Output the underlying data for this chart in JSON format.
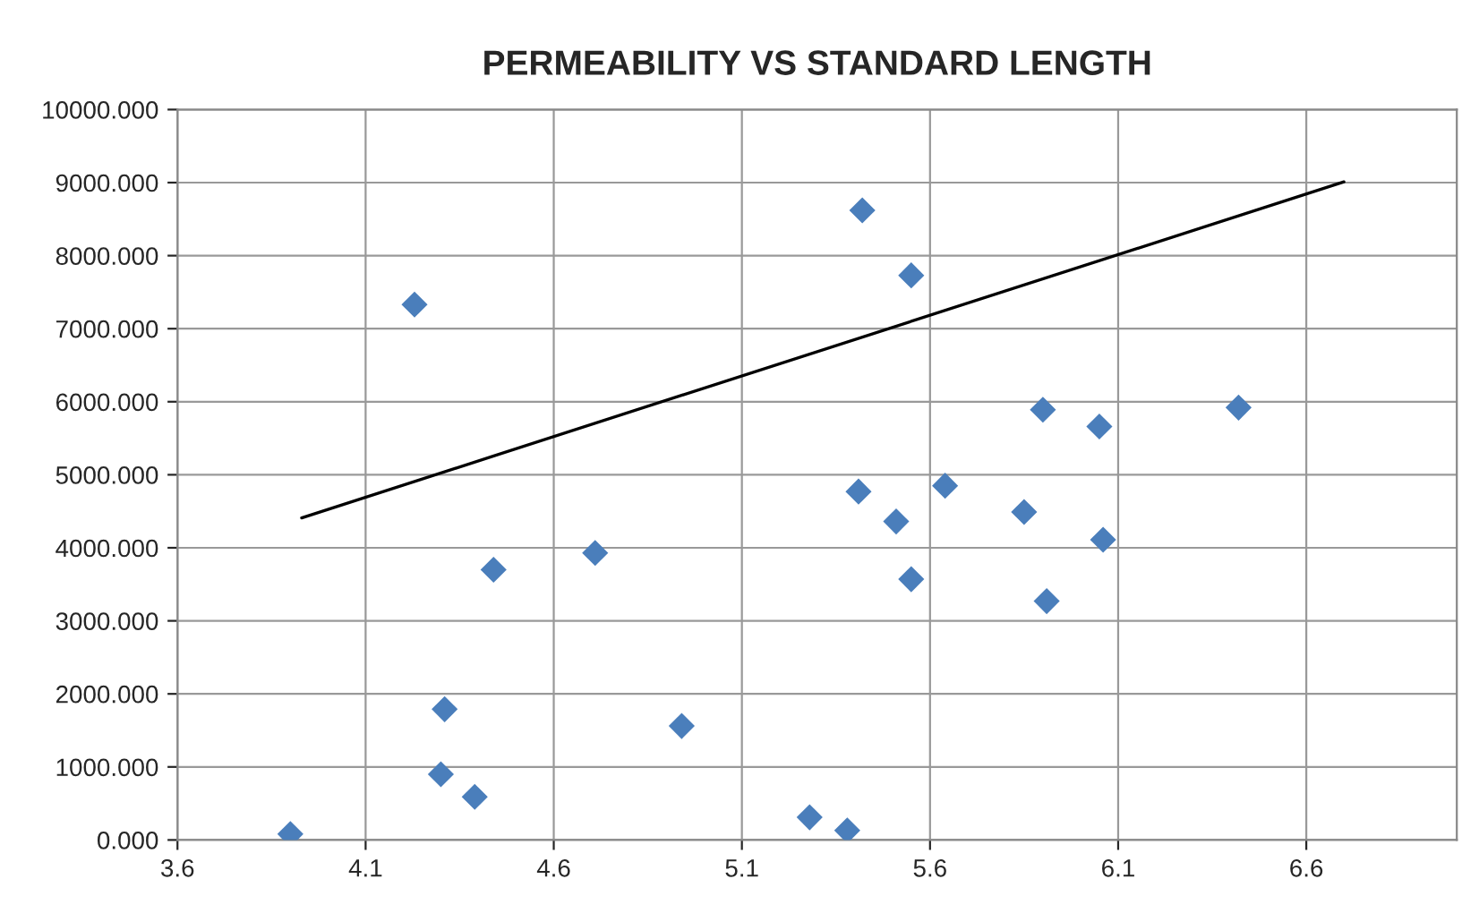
{
  "chart_data": {
    "type": "scatter",
    "title": "PERMEABILITY VS STANDARD LENGTH",
    "xlim": [
      3.6,
      7.0
    ],
    "xticks": [
      3.6,
      4.1,
      4.6,
      5.1,
      5.6,
      6.1,
      6.6
    ],
    "ylim": [
      0,
      10000
    ],
    "yticks": [
      {
        "value": 0,
        "label": "0.000"
      },
      {
        "value": 1000,
        "label": "1000.000"
      },
      {
        "value": 2000,
        "label": "2000.000"
      },
      {
        "value": 3000,
        "label": "3000.000"
      },
      {
        "value": 4000,
        "label": "4000.000"
      },
      {
        "value": 5000,
        "label": "5000.000"
      },
      {
        "value": 6000,
        "label": "6000.000"
      },
      {
        "value": 7000,
        "label": "7000.000"
      },
      {
        "value": 8000,
        "label": "8000.000"
      },
      {
        "value": 9000,
        "label": "9000.000"
      },
      {
        "value": 10000,
        "label": "10000.000"
      }
    ],
    "grid": true,
    "legend": false,
    "marker": "diamond",
    "series": [
      {
        "color": "#4a7ebb",
        "x": [
          3.9,
          4.23,
          4.31,
          4.3,
          4.39,
          4.44,
          4.71,
          4.94,
          5.28,
          5.38,
          5.41,
          5.42,
          5.51,
          5.55,
          5.55,
          5.64,
          5.85,
          5.9,
          5.91,
          6.05,
          6.06,
          6.42
        ],
        "values": [
          80,
          7330,
          1790,
          900,
          590,
          3700,
          3930,
          1560,
          310,
          130,
          4770,
          8620,
          4360,
          7730,
          3570,
          4850,
          4490,
          5890,
          3270,
          5660,
          4110,
          5920
        ]
      },
      {
        "type": "line",
        "color": "#000000",
        "marker": "none",
        "x": [
          3.93,
          6.7
        ],
        "values": [
          4410,
          9010
        ]
      }
    ]
  }
}
